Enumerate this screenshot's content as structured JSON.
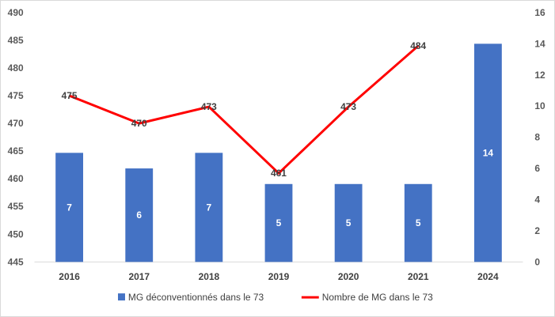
{
  "chart_data": {
    "type": "bar",
    "categories": [
      "2016",
      "2017",
      "2018",
      "2019",
      "2020",
      "2021",
      "2024"
    ],
    "series": [
      {
        "name": "MG déconventionnés dans le 73",
        "type": "bar",
        "axis": "right",
        "values": [
          7,
          6,
          7,
          5,
          5,
          5,
          14
        ],
        "color": "#4472c4"
      },
      {
        "name": "Nombre de MG dans le 73",
        "type": "line",
        "axis": "left",
        "values": [
          475,
          470,
          473,
          461,
          473,
          484,
          null
        ],
        "color": "#ff0000"
      }
    ],
    "y_left": {
      "lim": [
        445,
        490
      ],
      "ticks": [
        445,
        450,
        455,
        460,
        465,
        470,
        475,
        480,
        485,
        490
      ]
    },
    "y_right": {
      "lim": [
        0,
        16
      ],
      "ticks": [
        0,
        2,
        4,
        6,
        8,
        10,
        12,
        14,
        16
      ]
    },
    "grid": false,
    "legend": "bottom"
  }
}
